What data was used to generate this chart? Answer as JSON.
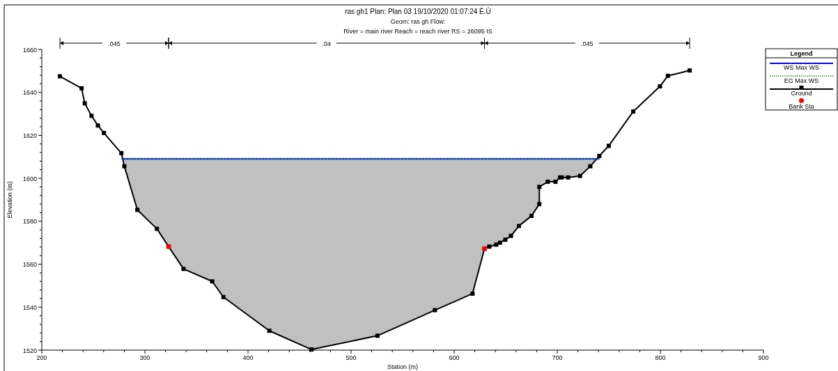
{
  "chart_data": {
    "type": "line",
    "title": "ras gh1      Plan: Plan 03    19/10/2020  01:07:24 È.Ù",
    "subtitle": "Geom: ras gh    Flow:",
    "annotations": [
      "River = main river  Reach = reach river    RS = 26095    IS",
      ".045",
      ".04",
      ".045"
    ],
    "xlabel": "Station (m)",
    "ylabel": "Elevation (m)",
    "legend_title": "Legend",
    "legend": "right",
    "xlim": [
      200,
      900
    ],
    "ylim": [
      1520,
      1660
    ],
    "xticks": [
      200,
      {
        "value": 220,
        "label": null
      },
      {
        "value": 240,
        "label": null
      },
      {
        "value": 260,
        "label": null
      },
      {
        "value": 280,
        "label": null
      },
      300,
      {
        "value": 320,
        "label": null
      },
      {
        "value": 340,
        "label": null
      },
      {
        "value": 360,
        "label": null
      },
      {
        "value": 380,
        "label": null
      },
      400,
      {
        "value": 420,
        "label": null
      },
      {
        "value": 440,
        "label": null
      },
      {
        "value": 460,
        "label": null
      },
      {
        "value": 480,
        "label": null
      },
      500,
      {
        "value": 520,
        "label": null
      },
      {
        "value": 540,
        "label": null
      },
      {
        "value": 560,
        "label": null
      },
      {
        "value": 580,
        "label": null
      },
      600,
      {
        "value": 620,
        "label": null
      },
      {
        "value": 640,
        "label": null
      },
      {
        "value": 660,
        "label": null
      },
      {
        "value": 680,
        "label": null
      },
      700,
      {
        "value": 720,
        "label": null
      },
      {
        "value": 740,
        "label": null
      },
      {
        "value": 760,
        "label": null
      },
      {
        "value": 780,
        "label": null
      },
      800,
      {
        "value": 820,
        "label": null
      },
      {
        "value": 840,
        "label": null
      },
      {
        "value": 860,
        "label": null
      },
      {
        "value": 880,
        "label": null
      },
      900
    ],
    "yticks": [
      1520,
      {
        "value": 1524,
        "label": null
      },
      {
        "value": 1528,
        "label": null
      },
      {
        "value": 1532,
        "label": null
      },
      {
        "value": 1536,
        "label": null
      },
      1540,
      {
        "value": 1544,
        "label": null
      },
      {
        "value": 1548,
        "label": null
      },
      {
        "value": 1552,
        "label": null
      },
      {
        "value": 1556,
        "label": null
      },
      1560,
      {
        "value": 1564,
        "label": null
      },
      {
        "value": 1568,
        "label": null
      },
      {
        "value": 1572,
        "label": null
      },
      {
        "value": 1576,
        "label": null
      },
      1580,
      {
        "value": 1584,
        "label": null
      },
      {
        "value": 1588,
        "label": null
      },
      {
        "value": 1592,
        "label": null
      },
      {
        "value": 1596,
        "label": null
      },
      1600,
      {
        "value": 1604,
        "label": null
      },
      {
        "value": 1608,
        "label": null
      },
      {
        "value": 1612,
        "label": null
      },
      {
        "value": 1616,
        "label": null
      },
      1620,
      {
        "value": 1624,
        "label": null
      },
      {
        "value": 1628,
        "label": null
      },
      {
        "value": 1632,
        "label": null
      },
      {
        "value": 1636,
        "label": null
      },
      1640,
      {
        "value": 1644,
        "label": null
      },
      {
        "value": 1648,
        "label": null
      },
      {
        "value": 1652,
        "label": null
      },
      {
        "value": 1656,
        "label": null
      },
      1660
    ],
    "series": [
      {
        "name": "WS Max WS",
        "color": "#0000ff",
        "marker": "none",
        "line_style": "solid",
        "x": [
          277.4,
          741.0
        ],
        "values": [
          1609.0,
          1609.0
        ]
      },
      {
        "name": "EG Max WS",
        "color": "#00a000",
        "marker": "none",
        "line_style": "dotted",
        "x": [
          277.4,
          741.0
        ],
        "values": [
          1609.0,
          1609.0
        ]
      },
      {
        "name": "Ground",
        "color": "#000000",
        "marker": "square",
        "line_style": "solid",
        "x": [
          217.6,
          238.6,
          241.7,
          248.2,
          254.4,
          260.3,
          277.2,
          280.1,
          292.7,
          311.6,
          323.0,
          337.5,
          365.3,
          376.2,
          420.7,
          461.6,
          525.6,
          581.3,
          617.8,
          629.4,
          634.1,
          640.8,
          644.4,
          649.6,
          655.1,
          662.8,
          675.0,
          682.6,
          682.6,
          690.8,
          698.3,
          702.7,
          704.3,
          710.5,
          722.1,
          732.0,
          740.8,
          749.9,
          773.7,
          799.6,
          807.3,
          828.4
        ],
        "values": [
          1647.5,
          1641.9,
          1634.9,
          1629.1,
          1624.6,
          1621.1,
          1611.7,
          1605.6,
          1585.3,
          1576.5,
          1568.2,
          1557.8,
          1552.0,
          1544.7,
          1529.0,
          1520.3,
          1526.7,
          1538.6,
          1546.3,
          1567.2,
          1568.2,
          1569.1,
          1570.0,
          1571.4,
          1573.2,
          1577.8,
          1582.5,
          1588.0,
          1596.0,
          1598.4,
          1598.4,
          1600.4,
          1600.4,
          1600.4,
          1601.1,
          1605.6,
          1610.4,
          1615.1,
          1631.1,
          1642.8,
          1647.7,
          1650.2
        ]
      },
      {
        "name": "Bank Sta",
        "type": "scatter",
        "color": "#ff0000",
        "marker": "circle",
        "x": [
          323.0,
          629.4
        ],
        "values": [
          1568.2,
          1567.2
        ]
      }
    ]
  }
}
